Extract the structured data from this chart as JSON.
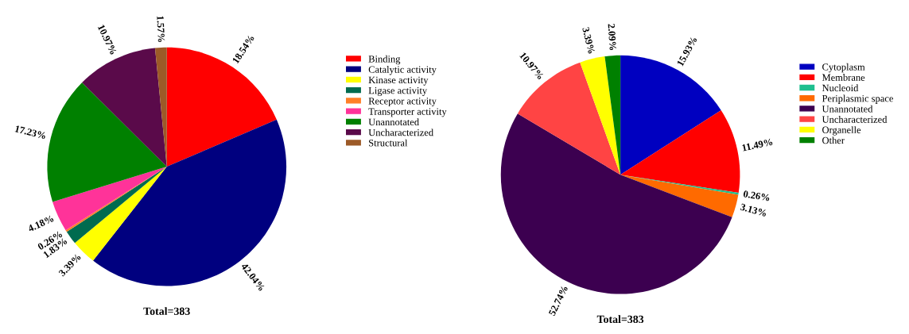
{
  "chart_data": [
    {
      "type": "pie",
      "categories": [
        "Binding",
        "Catalytic activity",
        "Kinase activity",
        "Ligase activity",
        "Receptor activity",
        "Transporter activity",
        "Unannotated",
        "Uncharacterized",
        "Structural"
      ],
      "values": [
        18.54,
        42.04,
        3.39,
        1.83,
        0.26,
        4.18,
        17.23,
        10.97,
        1.57
      ],
      "value_labels": [
        "18.54%",
        "42.04%",
        "3.39%",
        "1.83%",
        "0.26%",
        "4.18%",
        "17.23%",
        "10.97%",
        "1.57%"
      ],
      "colors": [
        "#ff0000",
        "#00007f",
        "#ffff00",
        "#006b4f",
        "#ff7f27",
        "#ff3399",
        "#008000",
        "#5a0a4a",
        "#9c5a28"
      ],
      "legend": "right",
      "annotations": [
        "Total=383"
      ]
    },
    {
      "type": "pie",
      "categories": [
        "Cytoplasm",
        "Membrane",
        "Nucleoid",
        "Periplasmic space",
        "Unannotated",
        "Uncharacterized",
        "Organelle",
        "Other"
      ],
      "values": [
        15.93,
        11.49,
        0.26,
        3.13,
        52.74,
        10.97,
        3.39,
        2.09
      ],
      "value_labels": [
        "15.93%",
        "11.49%",
        "0.26%",
        "3.13%",
        "52.74%",
        "10.97%",
        "3.39%",
        "2.09%"
      ],
      "colors": [
        "#0000c0",
        "#ff0000",
        "#1fbf8f",
        "#ff6a00",
        "#3c0050",
        "#ff4444",
        "#ffff00",
        "#008000"
      ],
      "legend": "right",
      "annotations": [
        "Total=383"
      ]
    }
  ]
}
